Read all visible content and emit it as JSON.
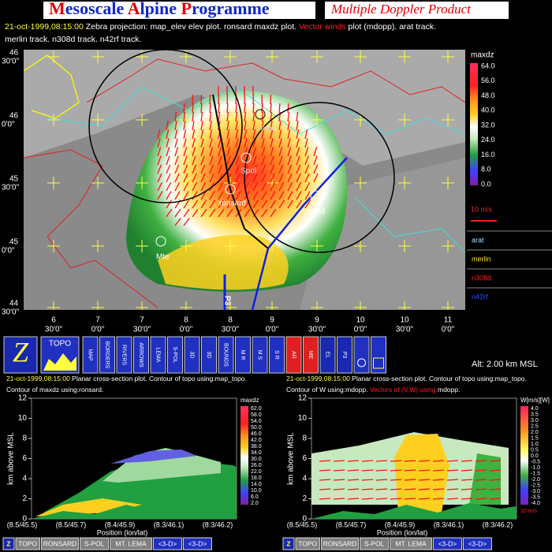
{
  "header": {
    "title": "Mesoscale Alpine Programme",
    "subtitle": "Multiple Doppler Product"
  },
  "info": {
    "line1": [
      "21-oct-1999,08:15:00",
      " Zebra projection: map_elev elev plot.  ronsard maxdz plot. ",
      "Vector winds",
      " plot (mdopp). arat track."
    ],
    "line2": "merlin track.  n308d track.  n42rf track."
  },
  "map": {
    "lat_labels": [
      {
        "deg": "46",
        "min": "30'0\""
      },
      {
        "deg": "46",
        "min": "0'0\""
      },
      {
        "deg": "45",
        "min": "30'0\""
      },
      {
        "deg": "45",
        "min": "0'0\""
      },
      {
        "deg": "44",
        "min": "30'0\""
      }
    ],
    "lon_labels": [
      {
        "deg": "6",
        "min": "30'0\""
      },
      {
        "deg": "7",
        "min": "0'0\""
      },
      {
        "deg": "7",
        "min": "30'0\""
      },
      {
        "deg": "8",
        "min": "0'0\""
      },
      {
        "deg": "8",
        "min": "30'0\""
      },
      {
        "deg": "9",
        "min": "0'0\""
      },
      {
        "deg": "9",
        "min": "30'0\""
      },
      {
        "deg": "10",
        "min": "0'0\""
      },
      {
        "deg": "10",
        "min": "30'0\""
      },
      {
        "deg": "11",
        "min": "0'0\""
      }
    ],
    "stations": [
      "ronsard",
      "spind",
      "Lema",
      "Spol",
      "Mte",
      "P3"
    ],
    "colorbar": {
      "title": "maxdz",
      "labels": [
        "64.0",
        "56.0",
        "48.0",
        "40.0",
        "32.0",
        "24.0",
        "16.0",
        "8.0",
        "0.0"
      ]
    },
    "wind_scale": "10 m/s",
    "tracks": [
      "arat",
      "merlin",
      "n308d",
      "n42rf"
    ]
  },
  "toolbar": {
    "buttons": [
      "Z",
      "TOPO",
      "MAP",
      "BORDERS",
      "RIVERS",
      "ARROWS",
      "LEMA",
      "S-POL",
      "3D",
      "3D",
      "BOUNDS",
      "M R",
      "M S",
      "S R",
      "AR",
      "ME",
      "EL",
      "P3"
    ],
    "altitude": "Alt: 2.00 km MSL"
  },
  "left_panel": {
    "info1": [
      "21-oct-1999,08:15:00",
      " Planar cross-section plot. Contour of topo using:map_topo."
    ],
    "info2": [
      "Contour of maxdz using:ronsard."
    ],
    "y_label": "km above MSL",
    "yticks": [
      0,
      2,
      4,
      6,
      8,
      10,
      12
    ],
    "x_labels": [
      "(8.5/45.5)",
      "(8.5/45.7)",
      "(8.4/45.9)",
      "(8.3/46.1)",
      "(8.3/46.2)"
    ],
    "x_title": "Position (lon/lat)",
    "colorbar": {
      "title": "maxdz",
      "labels": [
        "62.0",
        "58.0",
        "54.0",
        "50.0",
        "46.0",
        "42.0",
        "38.0",
        "34.0",
        "30.0",
        "26.0",
        "22.0",
        "18.0",
        "14.0",
        "10.0",
        "6.0",
        "2.0"
      ]
    },
    "buttons": [
      "Z",
      "TOPO",
      "RONSARD",
      "S-POL",
      "MT. LEMA",
      "<3-D>",
      "<3-D>"
    ]
  },
  "right_panel": {
    "info1": [
      "21-oct-1999,08:15:00",
      " Planar cross-section plot. Contour of topo using:map_topo."
    ],
    "info2": [
      "Contour of W using:mdopp. ",
      "Vectors of (V,W) using:",
      "mdopp."
    ],
    "y_label": "km above MSL",
    "yticks": [
      0,
      2,
      4,
      6,
      8,
      10,
      12
    ],
    "x_labels": [
      "(8.5/45.5)",
      "(8.5/45.7)",
      "(8.4/45.9)",
      "(8.3/46.1)",
      "(8.3/46.2)"
    ],
    "x_title": "Position (lon/lat)",
    "colorbar": {
      "title": "W[m/s][W]",
      "labels": [
        "4.0",
        "3.5",
        "3.0",
        "2.5",
        "2.0",
        "1.5",
        "1.0",
        "0.5",
        "0.0",
        "-0.5",
        "-1.0",
        "-1.5",
        "-2.0",
        "-2.5",
        "-3.0",
        "-3.5",
        "-4.0"
      ],
      "scale": "10 m/s"
    },
    "buttons": [
      "Z",
      "TOPO",
      "RONSARD",
      "S-POL",
      "MT. LEMA",
      "<3-D>",
      "<3-D>"
    ]
  }
}
